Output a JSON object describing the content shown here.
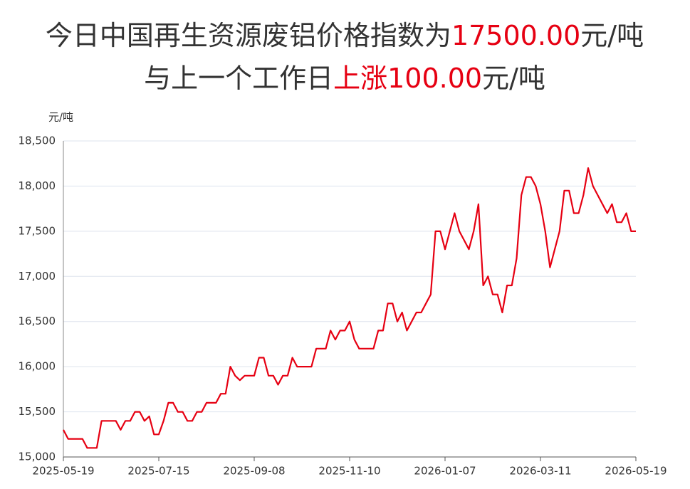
{
  "chart_data": {
    "type": "line",
    "title": [
      [
        "今日中国再生资源废铝价格指数为",
        "17500.00",
        "元/吨"
      ],
      [
        "与上一个工作日",
        "上涨100.00",
        "元/吨"
      ]
    ],
    "title_color": "#333333",
    "highlight_color": "#e60012",
    "y_unit": "元/吨",
    "categories": [
      "2025-05-19",
      null,
      null,
      null,
      null,
      null,
      null,
      null,
      null,
      null,
      null,
      null,
      null,
      null,
      null,
      null,
      null,
      null,
      null,
      null,
      "2025-07-15",
      null,
      null,
      null,
      null,
      null,
      null,
      null,
      null,
      null,
      null,
      null,
      null,
      null,
      null,
      null,
      null,
      null,
      null,
      null,
      "2025-09-08",
      null,
      null,
      null,
      null,
      null,
      null,
      null,
      null,
      null,
      null,
      null,
      null,
      null,
      null,
      null,
      null,
      null,
      null,
      null,
      "2025-11-10",
      null,
      null,
      null,
      null,
      null,
      null,
      null,
      null,
      null,
      null,
      null,
      null,
      null,
      null,
      null,
      null,
      null,
      null,
      null,
      "2026-01-07",
      null,
      null,
      null,
      null,
      null,
      null,
      null,
      null,
      null,
      null,
      null,
      null,
      null,
      null,
      null,
      null,
      null,
      null,
      null,
      "2026-03-11",
      null,
      null,
      null,
      null,
      null,
      null,
      null,
      null,
      null,
      null,
      null,
      null,
      null,
      null,
      null,
      null,
      null,
      null,
      null,
      "2026-05-19"
    ],
    "series": [
      {
        "color": "#e60012",
        "values": [
          15300,
          15200,
          15200,
          15200,
          15200,
          15100,
          15100,
          15100,
          15400,
          15400,
          15400,
          15400,
          15300,
          15400,
          15400,
          15500,
          15500,
          15400,
          15450,
          15250,
          15250,
          15400,
          15600,
          15600,
          15500,
          15500,
          15400,
          15400,
          15500,
          15500,
          15600,
          15600,
          15600,
          15700,
          15700,
          16000,
          15900,
          15850,
          15900,
          15900,
          15900,
          16100,
          16100,
          15900,
          15900,
          15800,
          15900,
          15900,
          16100,
          16000,
          16000,
          16000,
          16000,
          16200,
          16200,
          16200,
          16400,
          16300,
          16400,
          16400,
          16500,
          16300,
          16200,
          16200,
          16200,
          16200,
          16400,
          16400,
          16700,
          16700,
          16500,
          16600,
          16400,
          16500,
          16600,
          16600,
          16700,
          16800,
          17500,
          17500,
          17300,
          17500,
          17700,
          17500,
          17400,
          17300,
          17500,
          17800,
          16900,
          17000,
          16800,
          16800,
          16600,
          16900,
          16900,
          17200,
          17900,
          18100,
          18100,
          18000,
          17800,
          17500,
          17100,
          17300,
          17500,
          17950,
          17950,
          17700,
          17700,
          17900,
          18200,
          18000,
          17900,
          17800,
          17700,
          17800,
          17600,
          17600,
          17700,
          17500,
          17500
        ]
      }
    ],
    "ylim": [
      15000,
      18500
    ],
    "yticks": [
      {
        "value": 15000,
        "label": "15,000"
      },
      {
        "value": 15500,
        "label": "15,500"
      },
      {
        "value": 16000,
        "label": "16,000"
      },
      {
        "value": 16500,
        "label": "16,500"
      },
      {
        "value": 17000,
        "label": "17,000"
      },
      {
        "value": 17500,
        "label": "17,500"
      },
      {
        "value": 18000,
        "label": "18,000"
      },
      {
        "value": 18500,
        "label": "18,500"
      }
    ],
    "grid": true
  }
}
